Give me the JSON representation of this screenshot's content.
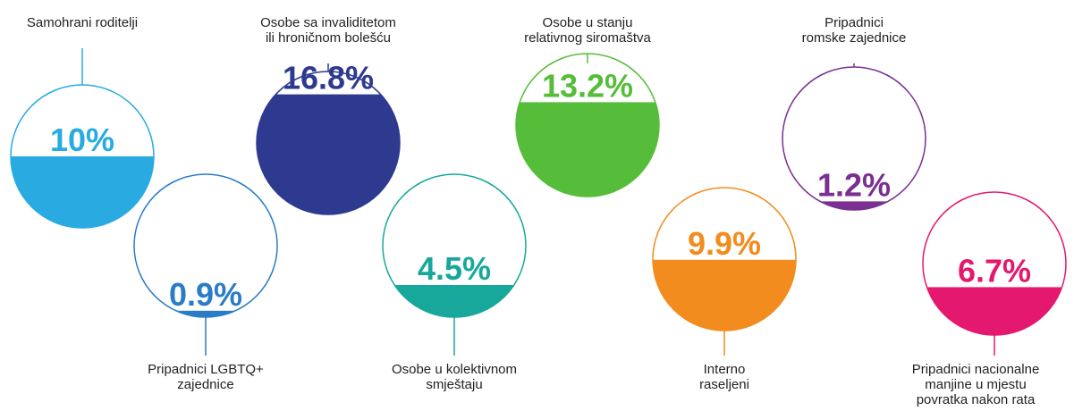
{
  "chart_data": {
    "type": "circle-fill",
    "categories": [
      "Samohrani roditelji",
      "Pripadnici LGBTQ+\nzajednice",
      "Osobe sa invaliditetom\nili hroničnom bolešću",
      "Osobe u kolektivnom\nsmještaju",
      "Osobe u stanju\nrelativnog siromaštva",
      "Interno\nraseljeni",
      "Pripadnici\nromske zajednice",
      "Pripadnici nacionalne\nmanjine u mjestu\npovratka nakon rata"
    ],
    "values": [
      10,
      0.9,
      16.8,
      4.5,
      13.2,
      9.9,
      1.2,
      6.7
    ],
    "value_labels": [
      "10%",
      "0.9%",
      "16.8%",
      "4.5%",
      "13.2%",
      "9.9%",
      "1.2%",
      "6.7%"
    ],
    "colors": [
      "#29abe2",
      "#2a7cc7",
      "#2e3a8f",
      "#17a89b",
      "#56bd3a",
      "#f28c1e",
      "#7a2f91",
      "#e5186f"
    ],
    "ylim": [
      0,
      20
    ]
  }
}
